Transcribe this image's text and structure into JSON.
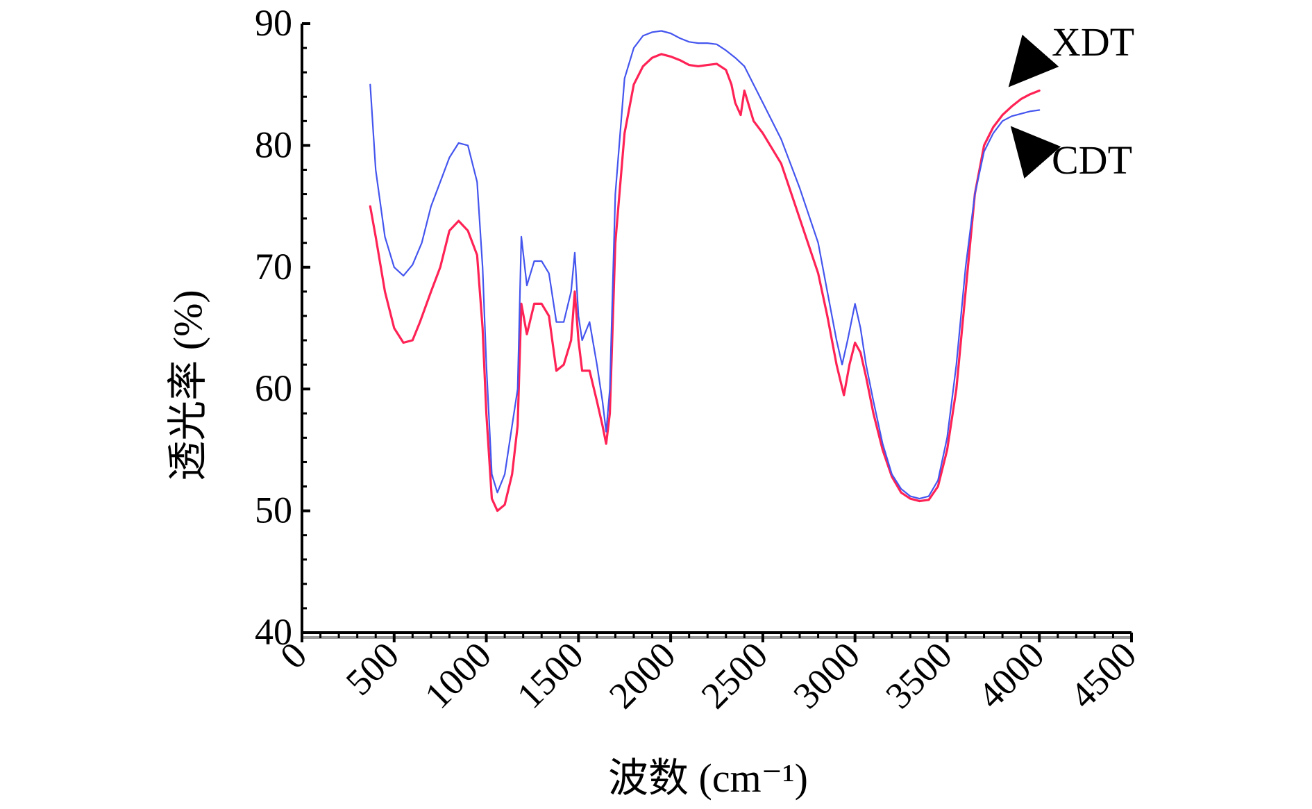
{
  "chart_data": {
    "type": "line",
    "xlabel": "波数 (cm⁻¹)",
    "ylabel": "透光率 (%)",
    "xlim": [
      0,
      4500
    ],
    "ylim": [
      40,
      90
    ],
    "x_ticks": [
      "0",
      "500",
      "1000",
      "1500",
      "2000",
      "2500",
      "3000",
      "3500",
      "4000",
      "4500"
    ],
    "y_ticks": [
      "40",
      "50",
      "60",
      "70",
      "80",
      "90"
    ],
    "grid": false,
    "legend": "none",
    "annotations": [
      "XDT",
      "CDT"
    ],
    "series": [
      {
        "name": "XDT",
        "color": "#ff2255",
        "points": [
          [
            370,
            75
          ],
          [
            400,
            72.5
          ],
          [
            450,
            68
          ],
          [
            500,
            65
          ],
          [
            550,
            63.8
          ],
          [
            600,
            64
          ],
          [
            640,
            65.5
          ],
          [
            700,
            68
          ],
          [
            750,
            70
          ],
          [
            800,
            73
          ],
          [
            850,
            73.8
          ],
          [
            900,
            73
          ],
          [
            950,
            71
          ],
          [
            980,
            65
          ],
          [
            1000,
            58
          ],
          [
            1030,
            51
          ],
          [
            1060,
            50
          ],
          [
            1100,
            50.5
          ],
          [
            1140,
            53
          ],
          [
            1170,
            57
          ],
          [
            1190,
            67
          ],
          [
            1220,
            64.5
          ],
          [
            1260,
            67
          ],
          [
            1300,
            67
          ],
          [
            1340,
            66
          ],
          [
            1380,
            61.5
          ],
          [
            1420,
            62
          ],
          [
            1460,
            64
          ],
          [
            1480,
            68
          ],
          [
            1500,
            64
          ],
          [
            1520,
            61.5
          ],
          [
            1560,
            61.5
          ],
          [
            1600,
            59
          ],
          [
            1630,
            57
          ],
          [
            1650,
            55.5
          ],
          [
            1670,
            58
          ],
          [
            1700,
            72
          ],
          [
            1750,
            81
          ],
          [
            1800,
            85
          ],
          [
            1850,
            86.5
          ],
          [
            1900,
            87.2
          ],
          [
            1950,
            87.5
          ],
          [
            2000,
            87.3
          ],
          [
            2050,
            87
          ],
          [
            2100,
            86.6
          ],
          [
            2150,
            86.5
          ],
          [
            2200,
            86.6
          ],
          [
            2250,
            86.7
          ],
          [
            2300,
            86.2
          ],
          [
            2330,
            85
          ],
          [
            2350,
            83.5
          ],
          [
            2380,
            82.5
          ],
          [
            2400,
            84.5
          ],
          [
            2450,
            82
          ],
          [
            2500,
            81
          ],
          [
            2600,
            78.5
          ],
          [
            2700,
            74
          ],
          [
            2800,
            69.5
          ],
          [
            2850,
            66
          ],
          [
            2900,
            62
          ],
          [
            2940,
            59.5
          ],
          [
            2970,
            62
          ],
          [
            3000,
            63.8
          ],
          [
            3030,
            63
          ],
          [
            3060,
            61
          ],
          [
            3100,
            58
          ],
          [
            3150,
            55
          ],
          [
            3200,
            52.8
          ],
          [
            3250,
            51.5
          ],
          [
            3300,
            51
          ],
          [
            3350,
            50.8
          ],
          [
            3400,
            50.9
          ],
          [
            3450,
            52
          ],
          [
            3500,
            55
          ],
          [
            3550,
            60
          ],
          [
            3600,
            68
          ],
          [
            3650,
            76
          ],
          [
            3700,
            80
          ],
          [
            3750,
            81.5
          ],
          [
            3800,
            82.5
          ],
          [
            3850,
            83.2
          ],
          [
            3900,
            83.8
          ],
          [
            3950,
            84.2
          ],
          [
            4000,
            84.5
          ]
        ]
      },
      {
        "name": "CDT",
        "color": "#4455ee",
        "points": [
          [
            370,
            85
          ],
          [
            400,
            78
          ],
          [
            450,
            72.5
          ],
          [
            500,
            70
          ],
          [
            550,
            69.3
          ],
          [
            600,
            70.2
          ],
          [
            650,
            72
          ],
          [
            700,
            75
          ],
          [
            750,
            77
          ],
          [
            800,
            79
          ],
          [
            850,
            80.2
          ],
          [
            900,
            80
          ],
          [
            950,
            77
          ],
          [
            980,
            70
          ],
          [
            1000,
            62
          ],
          [
            1030,
            53
          ],
          [
            1060,
            51.5
          ],
          [
            1100,
            53
          ],
          [
            1140,
            57
          ],
          [
            1170,
            60
          ],
          [
            1190,
            72.5
          ],
          [
            1220,
            68.5
          ],
          [
            1260,
            70.5
          ],
          [
            1300,
            70.5
          ],
          [
            1340,
            69.5
          ],
          [
            1380,
            65.5
          ],
          [
            1420,
            65.5
          ],
          [
            1460,
            68
          ],
          [
            1480,
            71.2
          ],
          [
            1500,
            66
          ],
          [
            1520,
            64
          ],
          [
            1560,
            65.5
          ],
          [
            1600,
            62
          ],
          [
            1630,
            59
          ],
          [
            1650,
            56.5
          ],
          [
            1670,
            60
          ],
          [
            1700,
            76
          ],
          [
            1750,
            85.5
          ],
          [
            1800,
            88
          ],
          [
            1850,
            89
          ],
          [
            1900,
            89.3
          ],
          [
            1950,
            89.4
          ],
          [
            2000,
            89.2
          ],
          [
            2050,
            88.8
          ],
          [
            2100,
            88.5
          ],
          [
            2150,
            88.4
          ],
          [
            2200,
            88.4
          ],
          [
            2250,
            88.3
          ],
          [
            2300,
            87.8
          ],
          [
            2350,
            87.2
          ],
          [
            2400,
            86.5
          ],
          [
            2450,
            85
          ],
          [
            2500,
            83.5
          ],
          [
            2600,
            80.5
          ],
          [
            2700,
            76.5
          ],
          [
            2800,
            72
          ],
          [
            2850,
            68
          ],
          [
            2900,
            64
          ],
          [
            2930,
            62
          ],
          [
            2960,
            64
          ],
          [
            3000,
            67
          ],
          [
            3030,
            65
          ],
          [
            3060,
            62
          ],
          [
            3100,
            59
          ],
          [
            3150,
            55.5
          ],
          [
            3200,
            53
          ],
          [
            3250,
            51.8
          ],
          [
            3300,
            51.2
          ],
          [
            3350,
            51
          ],
          [
            3400,
            51.2
          ],
          [
            3450,
            52.5
          ],
          [
            3500,
            56
          ],
          [
            3550,
            62
          ],
          [
            3600,
            70
          ],
          [
            3650,
            76
          ],
          [
            3700,
            79.5
          ],
          [
            3750,
            81
          ],
          [
            3800,
            82
          ],
          [
            3850,
            82.4
          ],
          [
            3900,
            82.6
          ],
          [
            3950,
            82.8
          ],
          [
            4000,
            82.9
          ]
        ]
      }
    ]
  }
}
